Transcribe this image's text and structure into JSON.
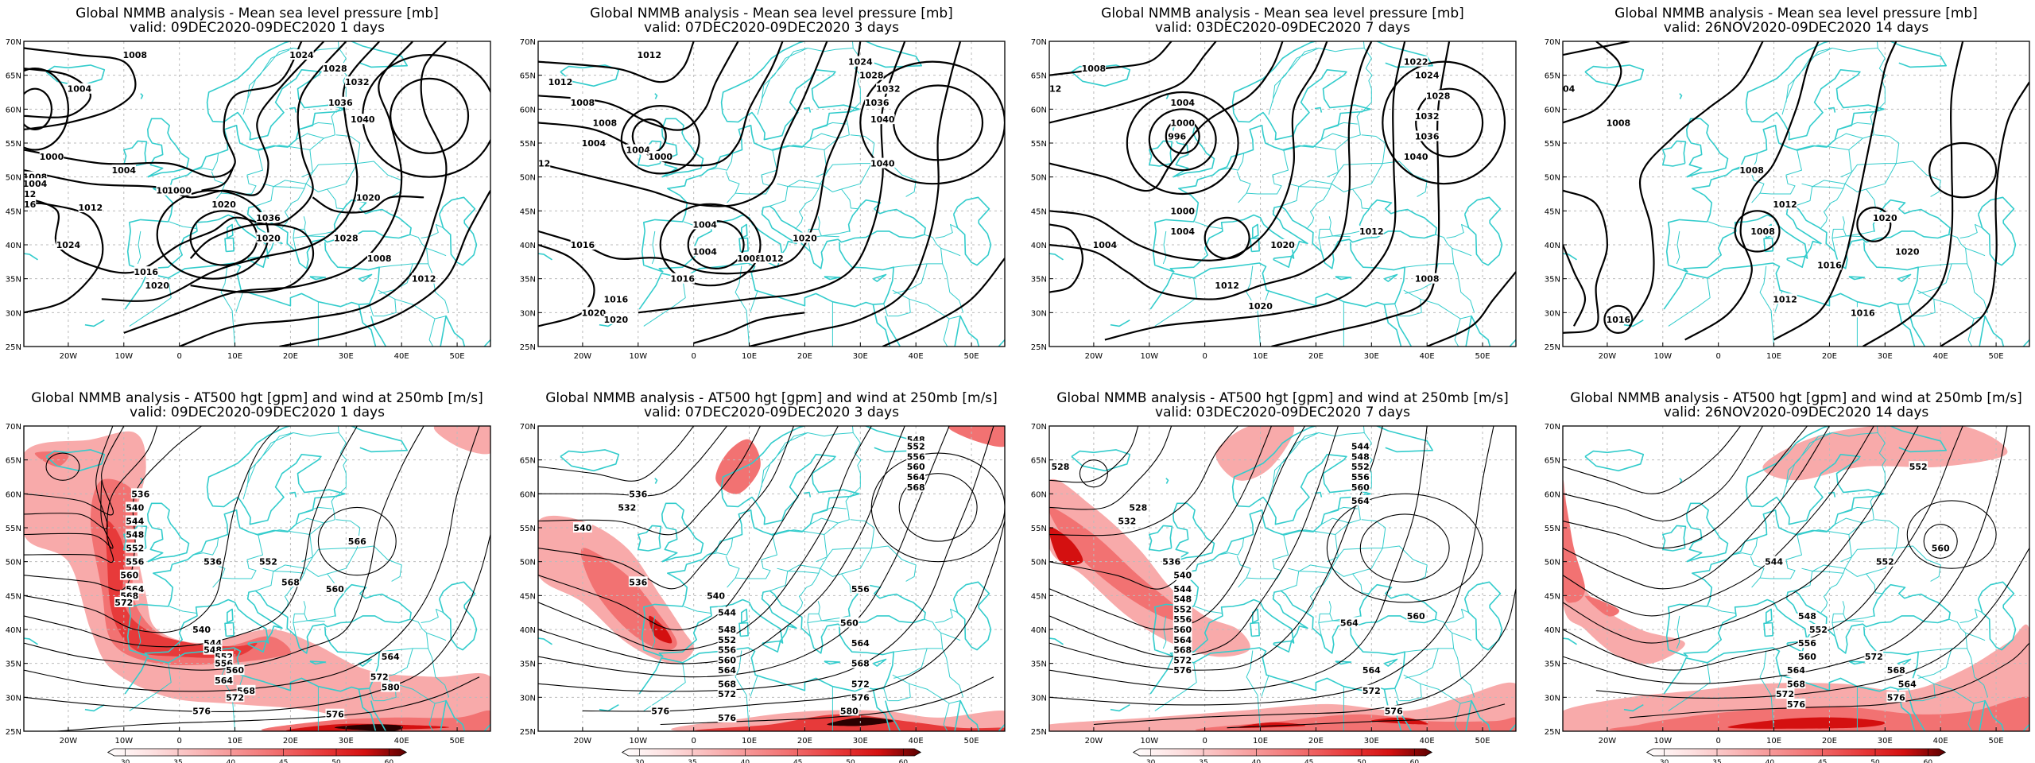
{
  "lat_labels": [
    "70N",
    "65N",
    "60N",
    "55N",
    "50N",
    "45N",
    "40N",
    "35N",
    "30N",
    "25N"
  ],
  "lon_labels": [
    "20W",
    "10W",
    "0",
    "10E",
    "20E",
    "30E",
    "40E",
    "50E"
  ],
  "colorbar_labels": [
    "30",
    "35",
    "40",
    "45",
    "50",
    "60"
  ],
  "colors": {
    "coast": "#33cccc",
    "isobar": "#000000",
    "grid": "#bbbbbb",
    "wind_shades": [
      "#fde0e0",
      "#f8aaaa",
      "#f27272",
      "#e73a3a",
      "#d41010",
      "#8a0000",
      "#2a0000"
    ]
  },
  "panels": [
    {
      "kind": "mslp",
      "title": "Global NMMB analysis - Mean sea level pressure [mb]",
      "subtitle": "valid: 09DEC2020-09DEC2020   1 days",
      "contour_labels": [
        "1008",
        "1024",
        "1028",
        "1004",
        "1032",
        "1036",
        "1040",
        "1000",
        "1004",
        "1008",
        "1008",
        "1012",
        "1016",
        "1012",
        "1004",
        "1000",
        "1020",
        "1036",
        "1020",
        "1024",
        "1020",
        "1028",
        "1008",
        "1012",
        "1016",
        "1020"
      ]
    },
    {
      "kind": "mslp",
      "title": "Global NMMB analysis - Mean sea level pressure [mb]",
      "subtitle": "valid: 07DEC2020-09DEC2020   3 days",
      "contour_labels": [
        "1012",
        "1024",
        "1012",
        "1008",
        "1028",
        "1032",
        "1008",
        "1036",
        "1004",
        "1040",
        "1004",
        "1000",
        "1012",
        "1040",
        "1004",
        "1020",
        "1016",
        "1004",
        "1008",
        "1016",
        "1012",
        "1016",
        "1020",
        "1020"
      ]
    },
    {
      "kind": "mslp",
      "title": "Global NMMB analysis - Mean sea level pressure [mb]",
      "subtitle": "valid: 03DEC2020-09DEC2020   7 days",
      "contour_labels": [
        "1008",
        "1022",
        "1024",
        "1012",
        "1028",
        "1004",
        "1032",
        "1000",
        "1036",
        "996",
        "1040",
        "1000",
        "1004",
        "1004",
        "1020",
        "1012",
        "1008",
        "1012",
        "1020"
      ]
    },
    {
      "kind": "mslp",
      "title": "Global NMMB analysis - Mean sea level pressure [mb]",
      "subtitle": "valid: 26NOV2020-09DEC2020   14 days",
      "contour_labels": [
        "1004",
        "1008",
        "1008",
        "1012",
        "1008",
        "1020",
        "1016",
        "1020",
        "1012",
        "1016",
        "1016"
      ]
    },
    {
      "kind": "z500",
      "title": "Global NMMB analysis - AT500 hgt [gpm] and wind at 250mb [m/s]",
      "subtitle": "valid: 09DEC2020-09DEC2020   1 days",
      "contour_labels": [
        "536",
        "540",
        "544",
        "548",
        "552",
        "556",
        "560",
        "564",
        "568",
        "572",
        "536",
        "552",
        "568",
        "560",
        "566",
        "540",
        "544",
        "548",
        "552",
        "556",
        "560",
        "564",
        "568",
        "572",
        "576",
        "564",
        "572",
        "580",
        "576"
      ]
    },
    {
      "kind": "z500",
      "title": "Global NMMB analysis - AT500 hgt [gpm] and wind at 250mb [m/s]",
      "subtitle": "valid: 07DEC2020-09DEC2020   3 days",
      "contour_labels": [
        "548",
        "552",
        "556",
        "560",
        "564",
        "568",
        "536",
        "532",
        "540",
        "536",
        "540",
        "544",
        "548",
        "552",
        "556",
        "560",
        "564",
        "568",
        "572",
        "576",
        "556",
        "560",
        "564",
        "568",
        "572",
        "576",
        "580",
        "576"
      ]
    },
    {
      "kind": "z500",
      "title": "Global NMMB analysis - AT500 hgt [gpm] and wind at 250mb [m/s]",
      "subtitle": "valid: 03DEC2020-09DEC2020   7 days",
      "contour_labels": [
        "528",
        "544",
        "548",
        "552",
        "556",
        "560",
        "564",
        "528",
        "532",
        "536",
        "540",
        "544",
        "548",
        "552",
        "556",
        "560",
        "564",
        "568",
        "572",
        "576",
        "564",
        "560",
        "564",
        "572",
        "576"
      ]
    },
    {
      "kind": "z500",
      "title": "Global NMMB analysis - AT500 hgt [gpm] and wind at 250mb [m/s]",
      "subtitle": "valid: 26NOV2020-09DEC2020   14 days",
      "contour_labels": [
        "552",
        "544",
        "552",
        "560",
        "548",
        "552",
        "556",
        "560",
        "564",
        "568",
        "572",
        "576",
        "576",
        "564",
        "568",
        "572"
      ]
    }
  ]
}
